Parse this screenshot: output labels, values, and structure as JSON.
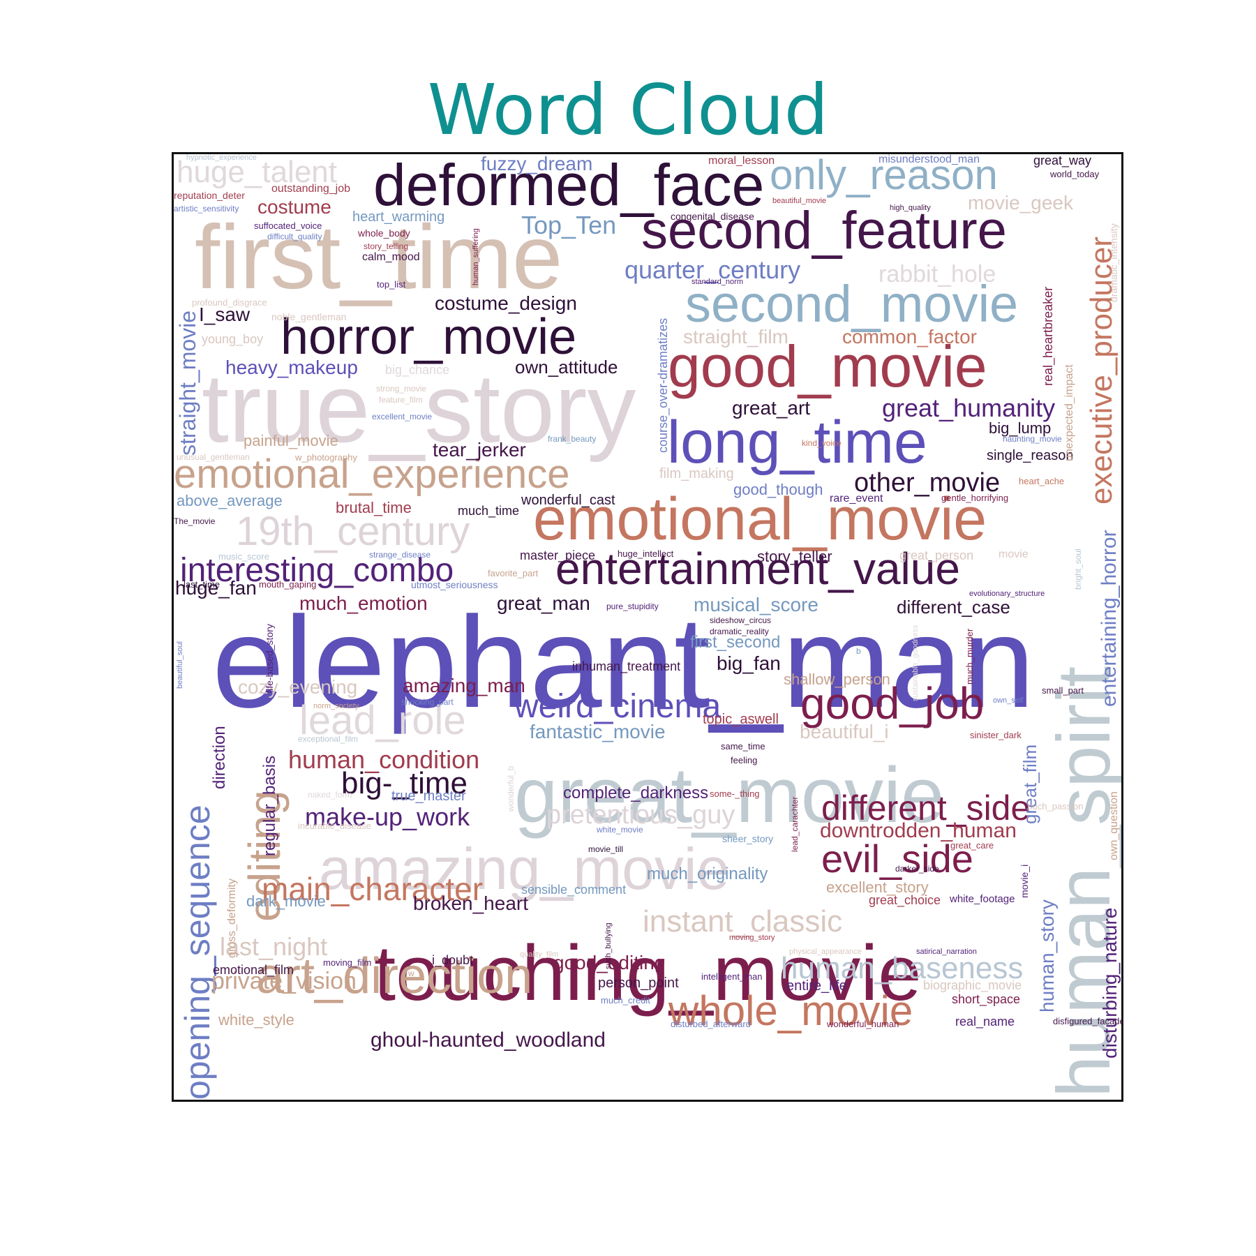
{
  "title": "Word Cloud",
  "colors": {
    "title": "#0f9090"
  },
  "words": {
    "elephant_man": "elephant_man",
    "true_story": "true_story",
    "first_time": "first_time",
    "touching_movie": "touching_movie",
    "great_movie": "great_movie",
    "human_spirit": "human_spirit",
    "deformed_face": "deformed_face",
    "second_feature": "second_feature",
    "emotional_movie": "emotional_movie",
    "good_movie": "good_movie",
    "second_movie": "second_movie",
    "long_time": "long_time",
    "amazing_movie": "amazing_movie",
    "horror_movie": "horror_movie",
    "entertainment_value": "entertainment_value",
    "emotional_experience": "emotional_experience",
    "art_direction": "art_direction",
    "only_reason": "only_reason",
    "whole_movie": "whole_movie",
    "opening_sequence": "opening_sequence",
    "nineteenth_century": "19th_century",
    "editing": "editing",
    "good_job": "good_job",
    "executive_producer": "executive_producer",
    "lead_role": "lead_role",
    "weird_cinema": "weird_cinema",
    "evil_side": "evil_side",
    "interesting_combo": "interesting_combo",
    "different_side": "different_side",
    "main_character": "main_character",
    "huge_talent": "huge_talent",
    "human_baseness": "human_baseness",
    "instant_classic": "instant_classic",
    "quarter_century": "quarter_century",
    "pretentious_guy": "pretentious_guy",
    "big_time": "big-_time",
    "human_condition": "human_condition",
    "rabbit_hole": "rabbit_hole",
    "other_movie": "other_movie",
    "great_humanity": "great_humanity",
    "make_up_work": "make-up_work",
    "straight_movie": "straight_movie",
    "entertaining_horror": "entertaining_horror",
    "top_ten": "Top_Ten",
    "ghoul_haunted_woodland": "ghoul-haunted_woodland",
    "private_vision": "private_vision",
    "last_night": "last_night",
    "touch_design": "costume_design",
    "downtrodden_human": "downtrodden_human",
    "disturbing_nature": "disturbing_nature",
    "human_story": "human_story",
    "fuzzy_dream": "fuzzy_dream",
    "movie_geek": "movie_geek",
    "costume": "costume",
    "heavy_makeup": "heavy_makeup",
    "common_factor": "common_factor",
    "straight_film": "straight_film",
    "much_emotion": "much_emotion",
    "great_man": "great_man",
    "musical_score": "musical_score",
    "different_case": "different_case",
    "huge_fan": "huge_fan",
    "amazing_man": "amazing_man",
    "big_fan": "big_fan",
    "cozy_evening": "cozy_evening",
    "fantastic_movie": "fantastic_movie",
    "beautiful_i": "beautiful_i",
    "tear_jerker": "tear_jerker",
    "own_attitude": "own_attitude",
    "great_art": "great_art",
    "broken_heart": "broken_heart",
    "good_editing": "good_editing",
    "complete_darkness": "complete_darkness",
    "much_originality": "much_originality",
    "excellent_story": "excellent_story",
    "great_film": "great_film",
    "direction": "direction",
    "regular_basis": "regular_basis",
    "first_second": "first_second",
    "shallow_person": "shallow_person",
    "i_saw": "I_saw",
    "painful_movie": "painful_movie",
    "brutal_time": "brutal_time",
    "story_teller": "story_teller",
    "good_though": "good_though",
    "film_making": "film_making",
    "big_lump": "big_lump",
    "single_reason": "single_reason",
    "above_average": "above_average",
    "topic_aswell": "topic_aswell",
    "wonderful_cast": "wonderful_cast",
    "much_time": "much_time",
    "master_piece": "master_piece",
    "inhuman_treatment": "inhuman_treatment",
    "dark_movie": "dark_movie",
    "white_style": "white_style",
    "person_point": "person_point",
    "entire_life": "entire_life",
    "short_space": "short_space",
    "great_choice": "great_choice",
    "real_name": "real_name",
    "true_master": "true_master",
    "i_doubt": "i_doubt",
    "heart_warming": "heart_warming",
    "sensible_comment": "sensible_comment",
    "great_person": "great_person",
    "biographic_movie": "biographic_movie",
    "big_chance": "big_chance",
    "outstanding_job": "outstanding_job",
    "course_over_dramatizes": "course_over-dramatizes",
    "real_heartbreaker": "real_heartbreaker",
    "unexpected_impact": "unexpected_impact",
    "gross_deformity": "gross_deformity",
    "young_boy": "young_boy",
    "calm_mood": "calm_mood",
    "emotional_film": "emotional_film",
    "moral_lesson": "moral_lesson",
    "misunderstood_man": "misunderstood_man",
    "great_way": "great_way",
    "dramatic_intensity": "dramatic_intensity",
    "own_question": "own_question",
    "reputation_deter": "reputation_deter",
    "whole_body": "whole_body",
    "noble_gentleman": "noble_gentleman",
    "top_list": "top_list",
    "rare_event": "rare_event",
    "congenital_disease": "congenital_disease",
    "w_photography": "w_photography",
    "disfigured_facade": "disfigured_facade",
    "wonderful_human": "wonderful_human",
    "disturbed_afterward": "disturbed_afterward",
    "much_credit": "much_credit",
    "intelligent_man": "intelligent_man",
    "moving_film": "moving_film",
    "white_footage": "white_footage",
    "movie_i": "movie_i",
    "great_care": "great_care",
    "darker_side": "darker_side",
    "sinister_dark": "sinister_dark",
    "such_passion": "such_passion",
    "small_part": "small_part",
    "much_murder": "much_murder",
    "bright_soul": "bright_soul",
    "life_based_story": "life-based_story",
    "lead_carachter": "lead_carachter",
    "sheer_story": "sheer_story",
    "feeling": "feeling",
    "some_thing": "some-_thing",
    "same_time": "same_time",
    "shocking_part": "shocking_part",
    "norm_society": "norm_society",
    "exceptional_film": "exceptional_film",
    "incurable_disease": "incurable_disease",
    "naked_form": "naked_form",
    "wonderful_b": "wonderful_b",
    "white_movie": "white_movie",
    "movie_till": "movie_till",
    "profound_disgrace": "profound_disgrace",
    "strange_disease": "strange_disease",
    "music_score": "music_score",
    "favorite_part": "favorite_part",
    "last_time": "last_time",
    "mouth_gaping": "mouth_gaping",
    "utmost_seriousness": "utmost_seriousness",
    "pure_stupidity": "pure_stupidity",
    "huge_intellect": "huge_intellect",
    "sideshow_circus": "sideshow_circus",
    "dramatic_reality": "dramatic_reality",
    "sustainable_goodness": "sustainable_goodness",
    "evolutionary_structure": "evolutionary_structure",
    "heart_ache": "heart_ache",
    "gentle_horrifying": "gentle_horrifying",
    "haunting_movie": "haunting_movie",
    "kind_voice": "kind_voice",
    "frank_beauty": "frank_beauty",
    "unusual_gentleman": "unusual_gentleman",
    "the_movie": "The_movie",
    "strong_movie": "strong_movie",
    "feature_film": "feature_film",
    "excellent_movie": "excellent_movie",
    "hypnotic_experience": "hypnotic_experience",
    "artistic_sensitivity": "artistic_sensitivity",
    "suffocated_voice": "suffocated_voice",
    "difficult_quality": "difficult_quality",
    "story_telling": "story_telling",
    "human_suffering": "human_suffering",
    "standard_norm": "standard_norm",
    "high_quality": "high_quality",
    "beautiful_movie": "beautiful_movie",
    "world_today": "world_today",
    "movie": "movie",
    "beautiful_soul": "beautiful_soul",
    "own_self": "own_self",
    "b": "b",
    "moving_story": "moving_story",
    "such_bullying": "such_bullying",
    "quality_film": "quality_film",
    "physical_appearance": "physical_appearance",
    "satirical_narration": "satirical_narration",
    "w": "w"
  }
}
